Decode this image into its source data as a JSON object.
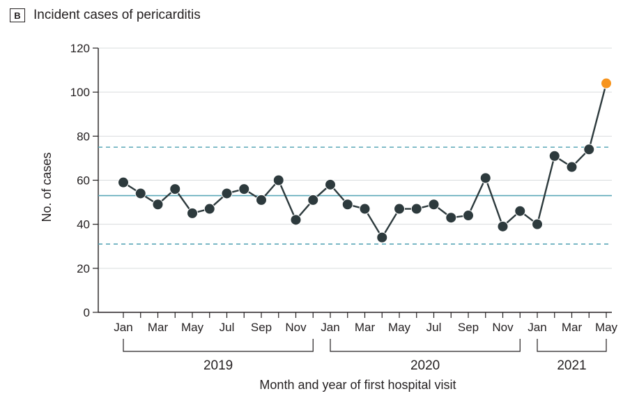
{
  "panel": {
    "badge": "B",
    "title": "Incident cases of pericarditis"
  },
  "chart_data": {
    "type": "line",
    "title": "Incident cases of pericarditis",
    "xlabel": "Month and year of first hospital visit",
    "ylabel": "No. of cases",
    "ylim": [
      0,
      120
    ],
    "yticks": [
      0,
      20,
      40,
      60,
      80,
      100,
      120
    ],
    "grid": true,
    "x": [
      "Jan 2019",
      "Feb 2019",
      "Mar 2019",
      "Apr 2019",
      "May 2019",
      "Jun 2019",
      "Jul 2019",
      "Aug 2019",
      "Sep 2019",
      "Oct 2019",
      "Nov 2019",
      "Dec 2019",
      "Jan 2020",
      "Feb 2020",
      "Mar 2020",
      "Apr 2020",
      "May 2020",
      "Jun 2020",
      "Jul 2020",
      "Aug 2020",
      "Sep 2020",
      "Oct 2020",
      "Nov 2020",
      "Dec 2020",
      "Jan 2021",
      "Feb 2021",
      "Mar 2021",
      "Apr 2021",
      "May 2021"
    ],
    "xtick_labels": [
      "Jan",
      "",
      "Mar",
      "",
      "May",
      "",
      "Jul",
      "",
      "Sep",
      "",
      "Nov",
      "",
      "Jan",
      "",
      "Mar",
      "",
      "May",
      "",
      "Jul",
      "",
      "Sep",
      "",
      "Nov",
      "",
      "Jan",
      "",
      "Mar",
      "",
      "May"
    ],
    "year_groups": [
      {
        "label": "2019",
        "start": 0,
        "end": 11
      },
      {
        "label": "2020",
        "start": 12,
        "end": 23
      },
      {
        "label": "2021",
        "start": 24,
        "end": 28
      }
    ],
    "series": [
      {
        "values": [
          59,
          54,
          49,
          56,
          45,
          47,
          54,
          56,
          51,
          60,
          42,
          51,
          58,
          49,
          47,
          34,
          47,
          47,
          49,
          43,
          44,
          61,
          39,
          46,
          40,
          71,
          66,
          74,
          104
        ],
        "color": "#2d3a3d",
        "highlight_last_color": "#f7941d"
      }
    ],
    "reference_lines": [
      {
        "value": 53,
        "style": "solid",
        "color": "#5aa7b8"
      },
      {
        "value": 75,
        "style": "dashed",
        "color": "#5aa7b8"
      },
      {
        "value": 31,
        "style": "dashed",
        "color": "#5aa7b8"
      }
    ]
  }
}
